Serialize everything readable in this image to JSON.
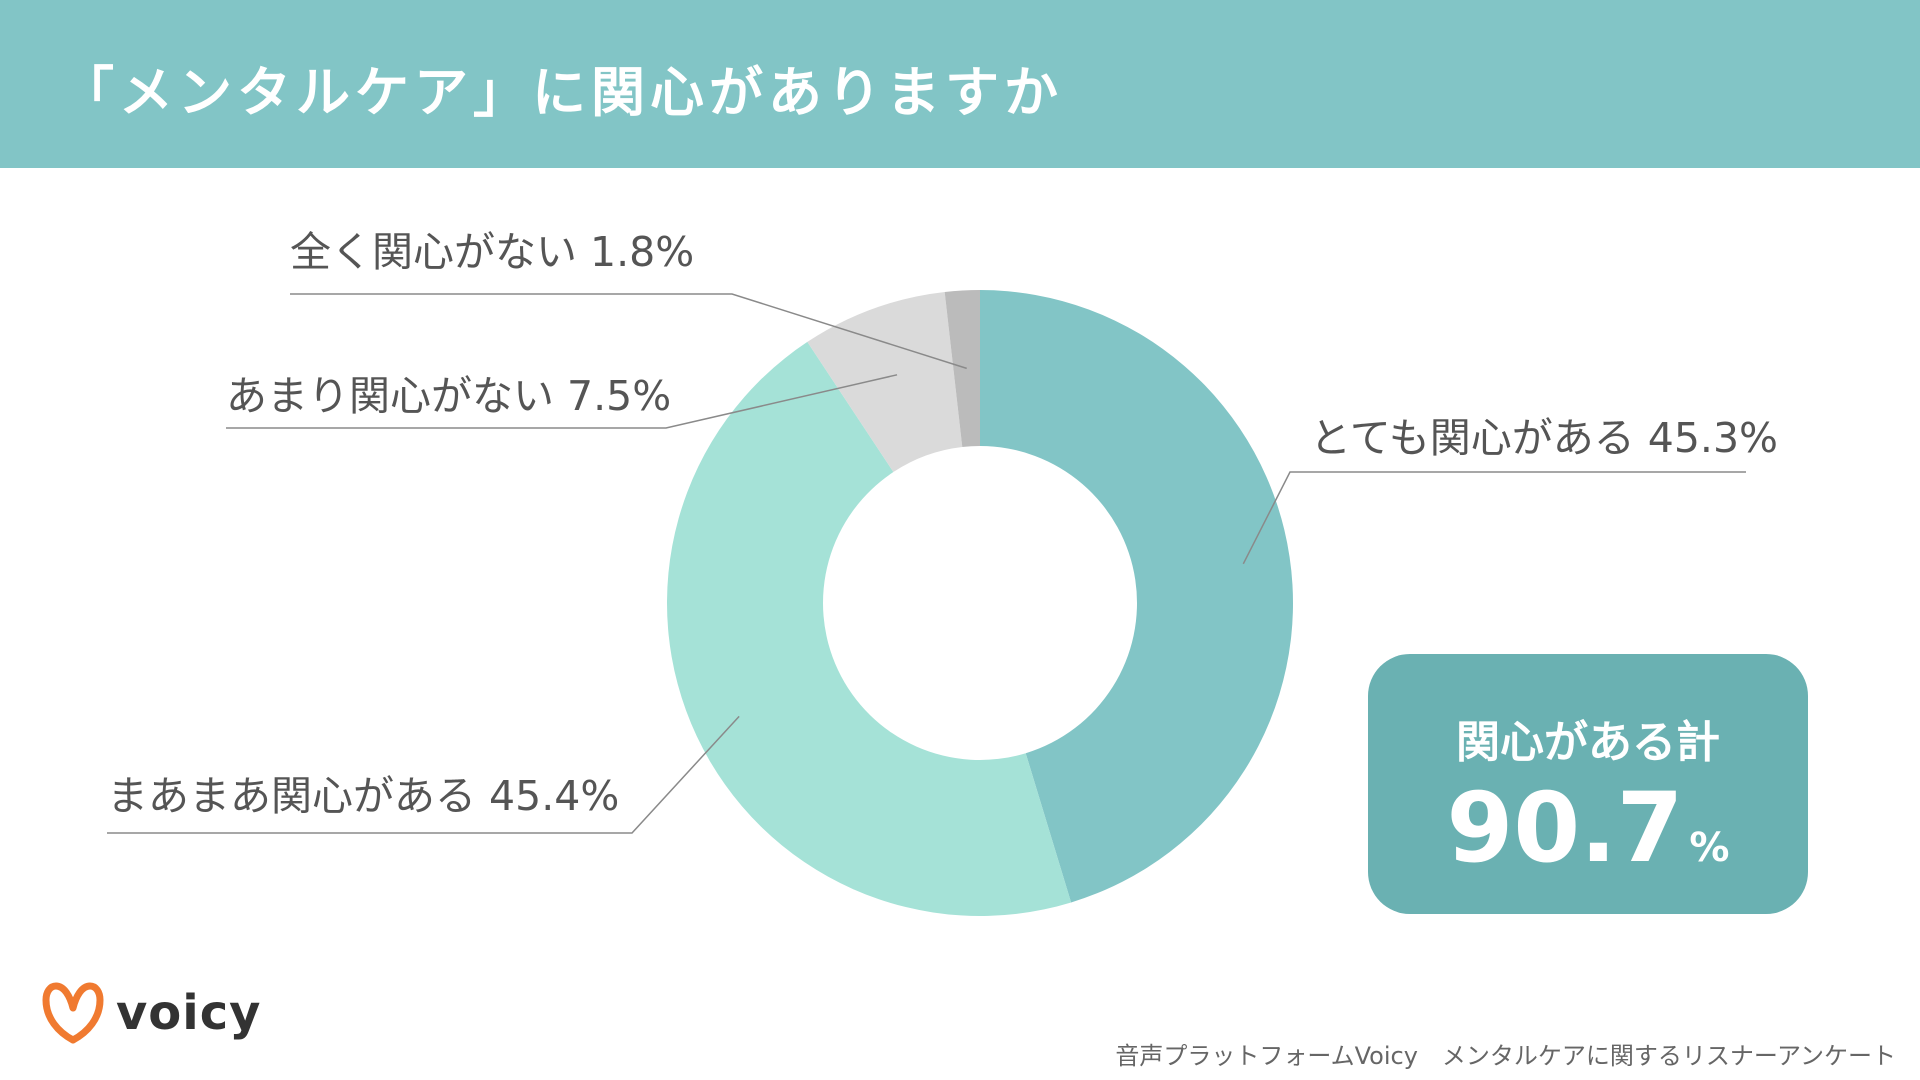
{
  "header": {
    "title": "「メンタルケア」に関心がありますか"
  },
  "chart_data": {
    "type": "pie",
    "variant": "donut",
    "categories": [
      "とても関心がある",
      "まあまあ関心がある",
      "あまり関心がない",
      "全く関心がない"
    ],
    "values": [
      45.3,
      45.4,
      7.5,
      1.8
    ],
    "labels": [
      "とても関心がある 45.3%",
      "まあまあ関心がある 45.4%",
      "あまり関心がない 7.5%",
      "全く関心がない 1.8%"
    ],
    "colors": [
      "#82c5c6",
      "#a5e2d7",
      "#dadada",
      "#bbbbbb"
    ],
    "start": "top, clockwise"
  },
  "summary": {
    "label": "関心がある計",
    "value": "90.7",
    "unit": "%",
    "color": "#6ab1b2"
  },
  "brand": {
    "name": "voicy",
    "icon": "voicy-logo-icon",
    "color": "#f07a30"
  },
  "footer": {
    "source": "音声プラットフォームVoicy　メンタルケアに関するリスナーアンケート"
  }
}
